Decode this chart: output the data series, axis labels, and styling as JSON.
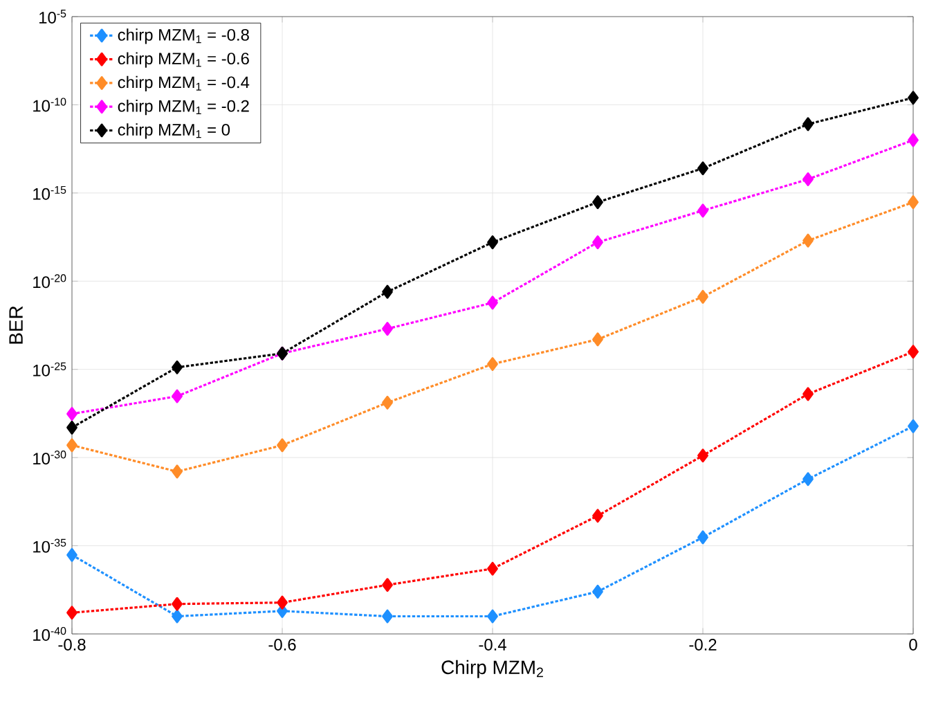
{
  "chart_data": {
    "type": "line",
    "xlabel": "Chirp MZM$_{2}$",
    "ylabel": "BER",
    "x": [
      -0.8,
      -0.7,
      -0.6,
      -0.5,
      -0.4,
      -0.3,
      -0.2,
      -0.1,
      0
    ],
    "series": [
      {
        "name": "chirp MZM$_{1}$ = -0.8",
        "color": "#1e90ff",
        "values": [
          3e-36,
          1e-39,
          2e-39,
          1e-39,
          1e-39,
          2.5e-38,
          3e-35,
          6e-32,
          6e-29
        ]
      },
      {
        "name": "chirp MZM$_{1}$ = -0.6",
        "color": "#ff0000",
        "values": [
          1.6e-39,
          5e-39,
          6e-39,
          6e-38,
          5e-37,
          5e-34,
          1.3e-30,
          4e-27,
          1e-24
        ]
      },
      {
        "name": "chirp MZM$_{1}$ = -0.4",
        "color": "#ff8c28",
        "values": [
          5e-30,
          1.6e-31,
          5e-30,
          1.3e-27,
          2e-25,
          5e-24,
          1.3e-21,
          2e-18,
          3e-16
        ]
      },
      {
        "name": "chirp MZM$_{1}$ = -0.2",
        "color": "#ff00ff",
        "values": [
          3e-28,
          3e-27,
          8e-25,
          2e-23,
          6e-22,
          1.6e-18,
          1e-16,
          6e-15,
          1e-12
        ]
      },
      {
        "name": "chirp MZM$_{1}$ = 0",
        "color": "#000000",
        "values": [
          5e-29,
          1.3e-25,
          8e-25,
          2.5e-21,
          1.6e-18,
          3e-16,
          2.5e-14,
          8e-12,
          2.5e-10
        ]
      }
    ],
    "xlim": [
      -0.8,
      0
    ],
    "xticks": [
      -0.8,
      -0.6,
      -0.4,
      -0.2,
      0
    ],
    "ylim": [
      1e-40,
      1e-05
    ],
    "yticks": [
      {
        "value": 1e-40,
        "label": "10$^{-40}$"
      },
      {
        "value": 1e-35,
        "label": "10$^{-35}$"
      },
      {
        "value": 1e-30,
        "label": "10$^{-30}$"
      },
      {
        "value": 1e-25,
        "label": "10$^{-25}$"
      },
      {
        "value": 1e-20,
        "label": "10$^{-20}$"
      },
      {
        "value": 1e-15,
        "label": "10$^{-15}$"
      },
      {
        "value": 1e-10,
        "label": "10$^{-10}$"
      },
      {
        "value": 1e-05,
        "label": "10$^{-5}$"
      }
    ],
    "log": "y",
    "grid": true,
    "legend": "top left",
    "marker": "diamond",
    "line_style": "dotted"
  }
}
